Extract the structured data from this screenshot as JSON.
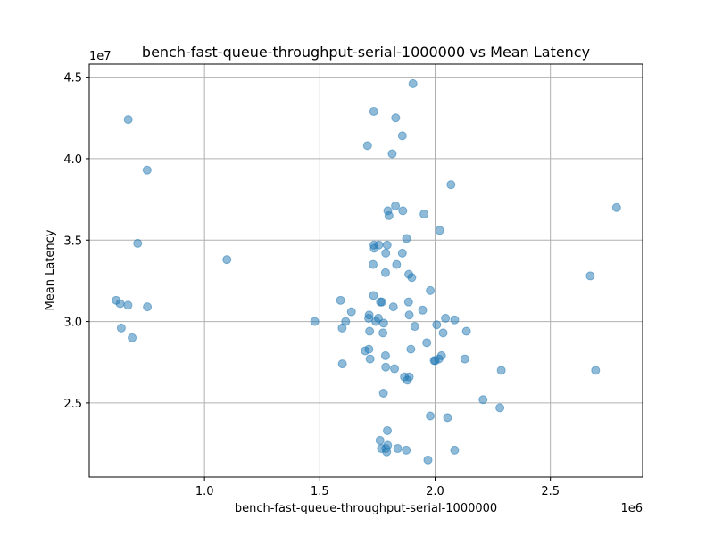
{
  "chart_data": {
    "type": "scatter",
    "title": "bench-fast-queue-throughput-serial-1000000 vs Mean Latency",
    "xlabel": "bench-fast-queue-throughput-serial-1000000",
    "ylabel": "Mean Latency",
    "x_offset_label": "1e6",
    "y_offset_label": "1e7",
    "xlim": [
      0.5,
      2.9
    ],
    "ylim": [
      2.045,
      4.58
    ],
    "x_ticks": [
      1.0,
      1.5,
      2.0,
      2.5
    ],
    "x_tick_labels": [
      "1.0",
      "1.5",
      "2.0",
      "2.5"
    ],
    "y_ticks": [
      2.5,
      3.0,
      3.5,
      4.0,
      4.5
    ],
    "y_tick_labels": [
      "2.5",
      "3.0",
      "3.5",
      "4.0",
      "4.5"
    ],
    "grid": true,
    "color": "#1f77b4",
    "points": [
      [
        0.669,
        4.24
      ],
      [
        0.751,
        3.93
      ],
      [
        0.71,
        3.48
      ],
      [
        0.617,
        3.13
      ],
      [
        0.634,
        3.11
      ],
      [
        0.668,
        3.1
      ],
      [
        0.752,
        3.09
      ],
      [
        0.639,
        2.96
      ],
      [
        0.686,
        2.9
      ],
      [
        1.097,
        3.38
      ],
      [
        1.478,
        3.0
      ],
      [
        1.904,
        4.46
      ],
      [
        1.734,
        4.29
      ],
      [
        1.829,
        4.25
      ],
      [
        1.858,
        4.14
      ],
      [
        1.707,
        4.08
      ],
      [
        1.814,
        4.03
      ],
      [
        2.069,
        3.84
      ],
      [
        1.828,
        3.71
      ],
      [
        1.795,
        3.68
      ],
      [
        1.8,
        3.65
      ],
      [
        1.86,
        3.68
      ],
      [
        1.952,
        3.66
      ],
      [
        2.02,
        3.56
      ],
      [
        1.876,
        3.51
      ],
      [
        1.735,
        3.47
      ],
      [
        1.756,
        3.47
      ],
      [
        1.792,
        3.47
      ],
      [
        1.736,
        3.45
      ],
      [
        1.786,
        3.42
      ],
      [
        1.858,
        3.42
      ],
      [
        1.731,
        3.35
      ],
      [
        1.833,
        3.35
      ],
      [
        1.785,
        3.3
      ],
      [
        1.886,
        3.29
      ],
      [
        1.899,
        3.27
      ],
      [
        1.979,
        3.19
      ],
      [
        1.733,
        3.16
      ],
      [
        1.59,
        3.13
      ],
      [
        1.763,
        3.12
      ],
      [
        1.769,
        3.12
      ],
      [
        1.885,
        3.12
      ],
      [
        1.819,
        3.09
      ],
      [
        1.946,
        3.07
      ],
      [
        1.637,
        3.06
      ],
      [
        1.714,
        3.04
      ],
      [
        1.712,
        3.02
      ],
      [
        1.754,
        3.02
      ],
      [
        1.743,
        3.0
      ],
      [
        1.888,
        3.04
      ],
      [
        2.045,
        3.02
      ],
      [
        2.085,
        3.01
      ],
      [
        1.612,
        3.0
      ],
      [
        1.777,
        2.99
      ],
      [
        2.007,
        2.98
      ],
      [
        1.912,
        2.97
      ],
      [
        1.597,
        2.96
      ],
      [
        1.716,
        2.94
      ],
      [
        1.774,
        2.93
      ],
      [
        2.035,
        2.93
      ],
      [
        2.136,
        2.94
      ],
      [
        1.964,
        2.87
      ],
      [
        1.713,
        2.83
      ],
      [
        1.697,
        2.82
      ],
      [
        1.895,
        2.83
      ],
      [
        1.785,
        2.79
      ],
      [
        2.028,
        2.79
      ],
      [
        1.996,
        2.76
      ],
      [
        2.001,
        2.76
      ],
      [
        2.016,
        2.77
      ],
      [
        1.718,
        2.77
      ],
      [
        2.129,
        2.77
      ],
      [
        1.598,
        2.74
      ],
      [
        1.786,
        2.72
      ],
      [
        1.824,
        2.71
      ],
      [
        2.287,
        2.7
      ],
      [
        2.696,
        2.7
      ],
      [
        1.867,
        2.66
      ],
      [
        1.888,
        2.66
      ],
      [
        1.88,
        2.64
      ],
      [
        1.776,
        2.56
      ],
      [
        2.208,
        2.52
      ],
      [
        2.281,
        2.47
      ],
      [
        1.979,
        2.42
      ],
      [
        2.054,
        2.41
      ],
      [
        1.793,
        2.33
      ],
      [
        1.761,
        2.27
      ],
      [
        1.794,
        2.24
      ],
      [
        1.786,
        2.22
      ],
      [
        1.767,
        2.22
      ],
      [
        1.838,
        2.22
      ],
      [
        1.875,
        2.21
      ],
      [
        2.085,
        2.21
      ],
      [
        1.79,
        2.2
      ],
      [
        1.969,
        2.15
      ],
      [
        2.673,
        3.28
      ],
      [
        2.787,
        3.7
      ]
    ]
  }
}
